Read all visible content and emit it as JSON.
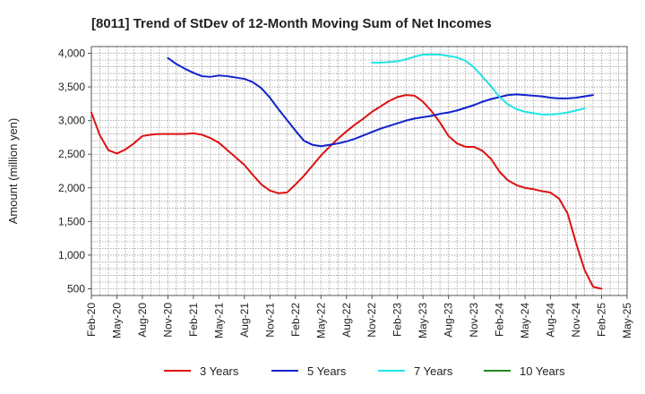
{
  "chart_data": {
    "type": "line",
    "title": "[8011]  Trend of StDev of 12-Month Moving Sum of Net Incomes",
    "ylabel": "Amount (million yen)",
    "xlabel": "",
    "ylim": [
      400,
      4100
    ],
    "yticks": [
      500,
      1000,
      1500,
      2000,
      2500,
      3000,
      3500,
      4000
    ],
    "ytick_labels": [
      "500",
      "1,000",
      "1,500",
      "2,000",
      "2,500",
      "3,000",
      "3,500",
      "4,000"
    ],
    "xticks": [
      "Feb-20",
      "May-20",
      "Aug-20",
      "Nov-20",
      "Feb-21",
      "May-21",
      "Aug-21",
      "Nov-21",
      "Feb-22",
      "May-22",
      "Aug-22",
      "Nov-22",
      "Feb-23",
      "May-23",
      "Aug-23",
      "Nov-23",
      "Feb-24",
      "May-24",
      "Aug-24",
      "Nov-24",
      "Feb-25",
      "May-25"
    ],
    "grid": true,
    "legend_position": "bottom",
    "series": [
      {
        "name": "3 Years",
        "color": "#dd1111",
        "start": "Feb-20",
        "values": [
          3120,
          2780,
          2560,
          2510,
          2570,
          2660,
          2770,
          2790,
          2800,
          2800,
          2800,
          2800,
          2810,
          2790,
          2740,
          2670,
          2560,
          2450,
          2340,
          2190,
          2050,
          1960,
          1920,
          1930,
          2050,
          2180,
          2330,
          2480,
          2610,
          2730,
          2840,
          2940,
          3030,
          3130,
          3210,
          3290,
          3350,
          3380,
          3370,
          3280,
          3140,
          2970,
          2770,
          2660,
          2610,
          2610,
          2550,
          2430,
          2240,
          2110,
          2040,
          2000,
          1980,
          1950,
          1930,
          1840,
          1620,
          1180,
          780,
          530,
          500
        ]
      },
      {
        "name": "5 Years",
        "color": "#1122cc",
        "start": "Nov-20",
        "values": [
          3930,
          3840,
          3770,
          3710,
          3660,
          3650,
          3670,
          3660,
          3640,
          3620,
          3570,
          3480,
          3340,
          3170,
          3010,
          2850,
          2700,
          2640,
          2620,
          2640,
          2660,
          2690,
          2730,
          2780,
          2830,
          2880,
          2920,
          2960,
          3000,
          3030,
          3050,
          3070,
          3100,
          3120,
          3150,
          3190,
          3230,
          3280,
          3320,
          3350,
          3380,
          3390,
          3380,
          3370,
          3360,
          3340,
          3330,
          3330,
          3340,
          3360,
          3380
        ]
      },
      {
        "name": "7 Years",
        "color": "#22e5e5",
        "start": "Nov-22",
        "values": [
          3860,
          3860,
          3870,
          3880,
          3910,
          3950,
          3980,
          3980,
          3980,
          3960,
          3940,
          3890,
          3790,
          3650,
          3510,
          3350,
          3240,
          3170,
          3130,
          3110,
          3090,
          3090,
          3100,
          3120,
          3150,
          3180
        ]
      },
      {
        "name": "10 Years",
        "color": "#228822",
        "start": "Feb-25",
        "values": []
      }
    ]
  }
}
